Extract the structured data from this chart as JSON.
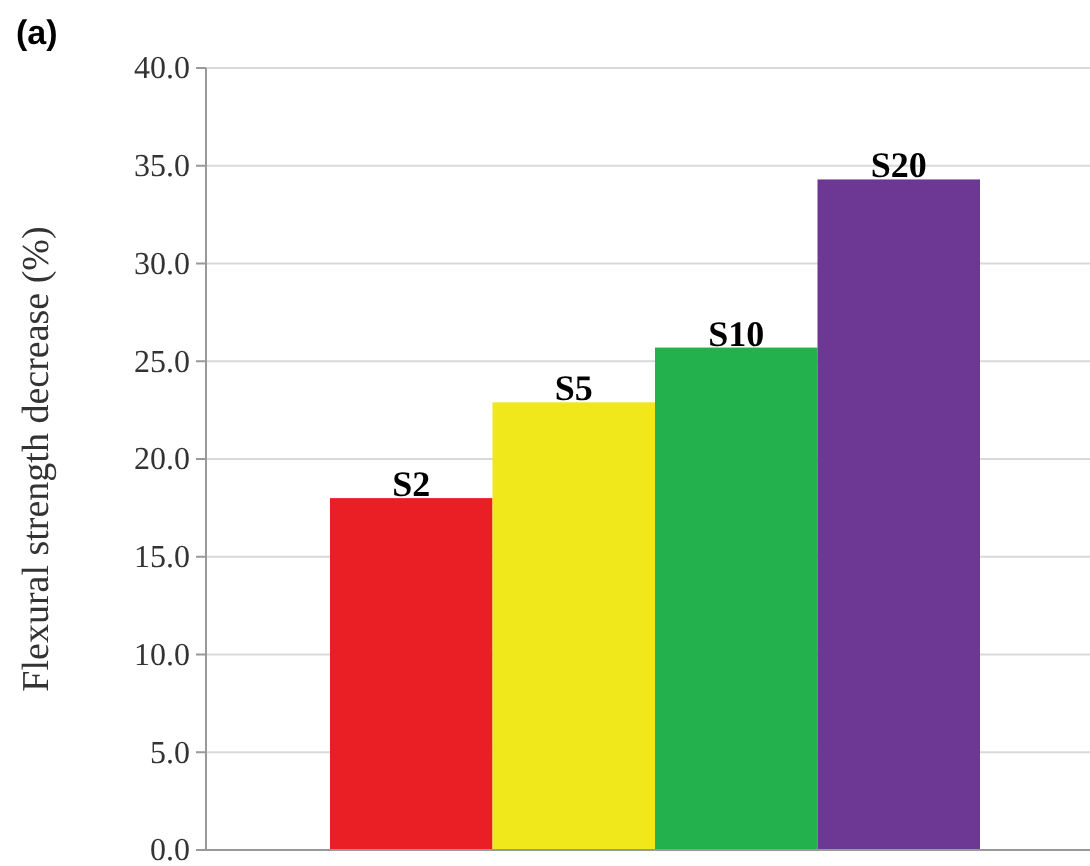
{
  "chart_data": {
    "type": "bar",
    "title": "(a)",
    "ylabel": "Flexural strength decrease (%)",
    "categories": [
      "S2",
      "S5",
      "S10",
      "S20"
    ],
    "values": [
      18.0,
      22.9,
      25.7,
      34.3
    ],
    "colors": [
      "#ea1f25",
      "#f0e81a",
      "#23b14d",
      "#6d3893"
    ],
    "ylim": [
      0,
      40
    ],
    "yticks": [
      {
        "value": 0,
        "label": "0.0"
      },
      {
        "value": 5,
        "label": "5.0"
      },
      {
        "value": 10,
        "label": "10.0"
      },
      {
        "value": 15,
        "label": "15.0"
      },
      {
        "value": 20,
        "label": "20.0"
      },
      {
        "value": 25,
        "label": "25.0"
      },
      {
        "value": 30,
        "label": "30.0"
      },
      {
        "value": 35,
        "label": "35.0"
      },
      {
        "value": 40,
        "label": "40.0"
      }
    ],
    "grid": "y"
  }
}
